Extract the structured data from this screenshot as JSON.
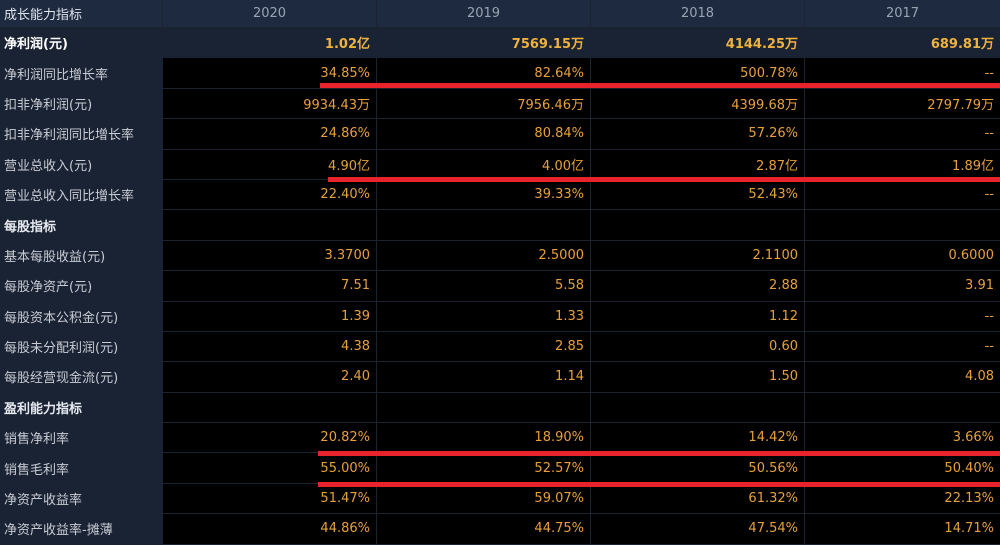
{
  "header": {
    "label": "成长能力指标",
    "years": [
      "2020",
      "2019",
      "2018",
      "2017"
    ]
  },
  "rows": [
    {
      "label": "净利润(元)",
      "values": [
        "1.02亿",
        "7569.15万",
        "4144.25万",
        "689.81万"
      ]
    },
    {
      "label": "净利润同比增长率",
      "values": [
        "34.85%",
        "82.64%",
        "500.78%",
        "--"
      ]
    },
    {
      "label": "扣非净利润(元)",
      "values": [
        "9934.43万",
        "7956.46万",
        "4399.68万",
        "2797.79万"
      ]
    },
    {
      "label": "扣非净利润同比增长率",
      "values": [
        "24.86%",
        "80.84%",
        "57.26%",
        "--"
      ]
    },
    {
      "label": "营业总收入(元)",
      "values": [
        "4.90亿",
        "4.00亿",
        "2.87亿",
        "1.89亿"
      ]
    },
    {
      "label": "营业总收入同比增长率",
      "values": [
        "22.40%",
        "39.33%",
        "52.43%",
        "--"
      ]
    },
    {
      "label": "每股指标",
      "values": [
        "",
        "",
        "",
        ""
      ]
    },
    {
      "label": "基本每股收益(元)",
      "values": [
        "3.3700",
        "2.5000",
        "2.1100",
        "0.6000"
      ]
    },
    {
      "label": "每股净资产(元)",
      "values": [
        "7.51",
        "5.58",
        "2.88",
        "3.91"
      ]
    },
    {
      "label": "每股资本公积金(元)",
      "values": [
        "1.39",
        "1.33",
        "1.12",
        "--"
      ]
    },
    {
      "label": "每股未分配利润(元)",
      "values": [
        "4.38",
        "2.85",
        "0.60",
        "--"
      ]
    },
    {
      "label": "每股经营现金流(元)",
      "values": [
        "2.40",
        "1.14",
        "1.50",
        "4.08"
      ]
    },
    {
      "label": "盈利能力指标",
      "values": [
        "",
        "",
        "",
        ""
      ]
    },
    {
      "label": "销售净利率",
      "values": [
        "20.82%",
        "18.90%",
        "14.42%",
        "3.66%"
      ]
    },
    {
      "label": "销售毛利率",
      "values": [
        "55.00%",
        "52.57%",
        "50.56%",
        "50.40%"
      ]
    },
    {
      "label": "净资产收益率",
      "values": [
        "51.47%",
        "59.07%",
        "61.32%",
        "22.13%"
      ]
    },
    {
      "label": "净资产收益率-摊薄",
      "values": [
        "44.86%",
        "44.75%",
        "47.54%",
        "14.71%"
      ]
    }
  ],
  "colors": {
    "value": "#e8a13a",
    "label_bg": "#1a2333",
    "annotation": "#e8232b"
  }
}
